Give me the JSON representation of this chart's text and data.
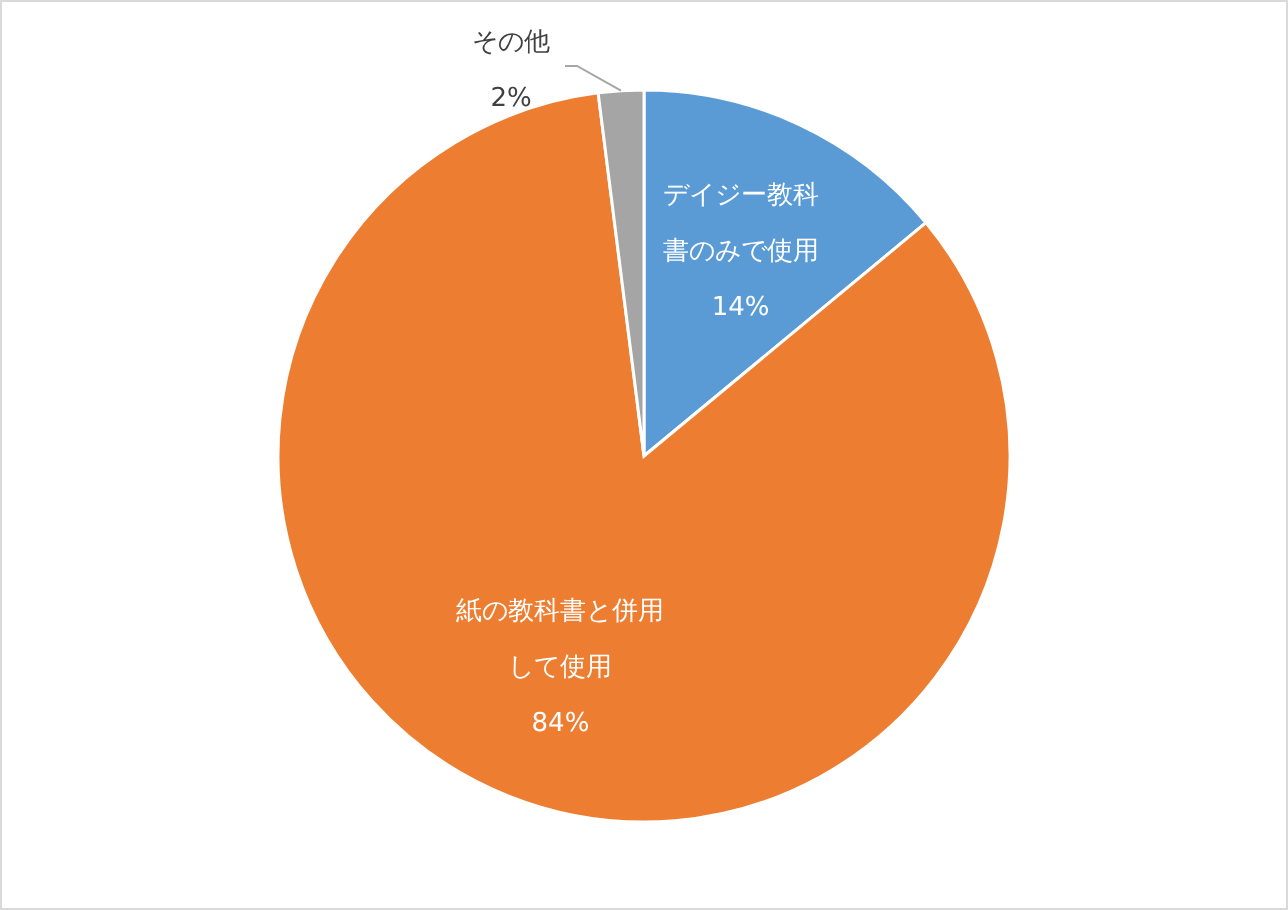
{
  "chart_data": {
    "type": "pie",
    "categories": [
      "デイジー教科書のみで使用",
      "紙の教科書と併用して使用",
      "その他"
    ],
    "values": [
      14,
      84,
      2
    ],
    "colors": [
      "#5b9bd5",
      "#ed7d31",
      "#a5a5a5"
    ],
    "value_labels": [
      "14%",
      "84%",
      "2%"
    ]
  }
}
